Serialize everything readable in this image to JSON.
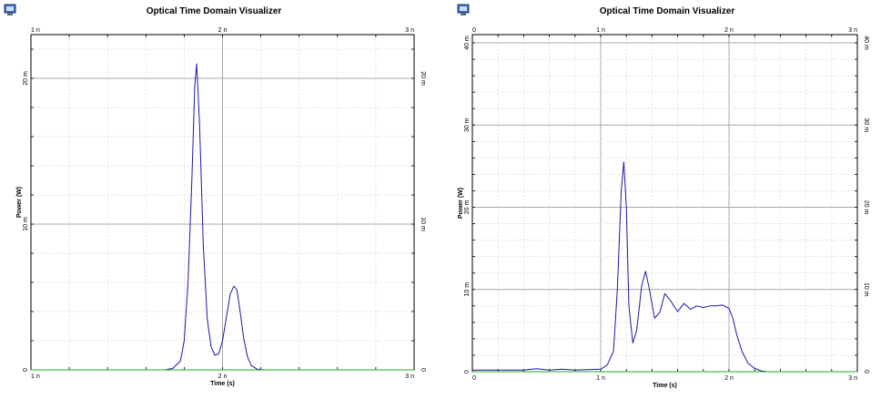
{
  "charts": [
    {
      "title": "Optical Time Domain Visualizer",
      "app_icon": "monitor-icon",
      "chart_data": {
        "type": "line",
        "xlabel": "Time (s)",
        "ylabel": "Power (W)",
        "x_unit": "ns",
        "y_unit": "mW",
        "xlim": [
          1,
          3
        ],
        "ylim": [
          0,
          23
        ],
        "x_ticks": [
          {
            "v": 1,
            "label": "1 n"
          },
          {
            "v": 2,
            "label": "2 n"
          },
          {
            "v": 3,
            "label": "3 n"
          }
        ],
        "y_ticks": [
          {
            "v": 0,
            "label": "0"
          },
          {
            "v": 10,
            "label": "10 m"
          },
          {
            "v": 20,
            "label": "20 m"
          }
        ],
        "grid": true,
        "series": [
          {
            "color": "#1a1aa6",
            "x": [
              1.0,
              1.7,
              1.74,
              1.78,
              1.8,
              1.82,
              1.84,
              1.855,
              1.865,
              1.88,
              1.9,
              1.92,
              1.94,
              1.96,
              1.98,
              2.0,
              2.02,
              2.04,
              2.06,
              2.075,
              2.09,
              2.11,
              2.13,
              2.15,
              2.18,
              2.22,
              3.0
            ],
            "y": [
              0,
              0,
              0.1,
              0.6,
              2.0,
              6.0,
              13.0,
              19.5,
              21.0,
              17.0,
              8.5,
              3.5,
              1.6,
              1.0,
              1.1,
              2.0,
              3.6,
              5.2,
              5.75,
              5.5,
              4.2,
              2.2,
              0.9,
              0.3,
              0.05,
              0,
              0
            ]
          },
          {
            "color": "#22aa22",
            "x": [
              1.0,
              3.0
            ],
            "y": [
              0,
              0
            ]
          }
        ]
      }
    },
    {
      "title": "Optical Time Domain Visualizer",
      "app_icon": "monitor-icon",
      "chart_data": {
        "type": "line",
        "xlabel": "Time (s)",
        "ylabel": "Power (W)",
        "x_unit": "ns",
        "y_unit": "mW",
        "xlim": [
          0,
          3
        ],
        "ylim": [
          0,
          41
        ],
        "x_ticks": [
          {
            "v": 0,
            "label": "0"
          },
          {
            "v": 1,
            "label": "1 n"
          },
          {
            "v": 2,
            "label": "2 n"
          },
          {
            "v": 3,
            "label": "3 n"
          }
        ],
        "y_ticks": [
          {
            "v": 0,
            "label": "0"
          },
          {
            "v": 10,
            "label": "10 m"
          },
          {
            "v": 20,
            "label": "20 m"
          },
          {
            "v": 30,
            "label": "30 m"
          },
          {
            "v": 40,
            "label": "40 m"
          }
        ],
        "grid": true,
        "series": [
          {
            "color": "#1a1aa6",
            "x": [
              0.0,
              0.4,
              0.5,
              0.6,
              0.7,
              0.8,
              0.9,
              1.0,
              1.05,
              1.1,
              1.13,
              1.16,
              1.18,
              1.2,
              1.22,
              1.25,
              1.28,
              1.32,
              1.35,
              1.38,
              1.42,
              1.46,
              1.5,
              1.55,
              1.6,
              1.65,
              1.7,
              1.75,
              1.8,
              1.85,
              1.9,
              1.95,
              2.0,
              2.03,
              2.06,
              2.1,
              2.15,
              2.2,
              2.25,
              2.3,
              3.0
            ],
            "y": [
              0.2,
              0.2,
              0.35,
              0.2,
              0.3,
              0.2,
              0.25,
              0.3,
              0.8,
              2.5,
              10.0,
              22.0,
              25.5,
              20.0,
              8.0,
              3.5,
              5.0,
              10.5,
              12.2,
              10.0,
              6.5,
              7.2,
              9.5,
              8.5,
              7.3,
              8.3,
              7.6,
              8.0,
              7.8,
              8.0,
              8.0,
              8.1,
              7.7,
              6.5,
              4.5,
              2.5,
              1.0,
              0.4,
              0.1,
              0,
              0
            ]
          },
          {
            "color": "#22aa22",
            "x": [
              0.0,
              3.0
            ],
            "y": [
              0,
              0
            ]
          }
        ]
      }
    }
  ]
}
